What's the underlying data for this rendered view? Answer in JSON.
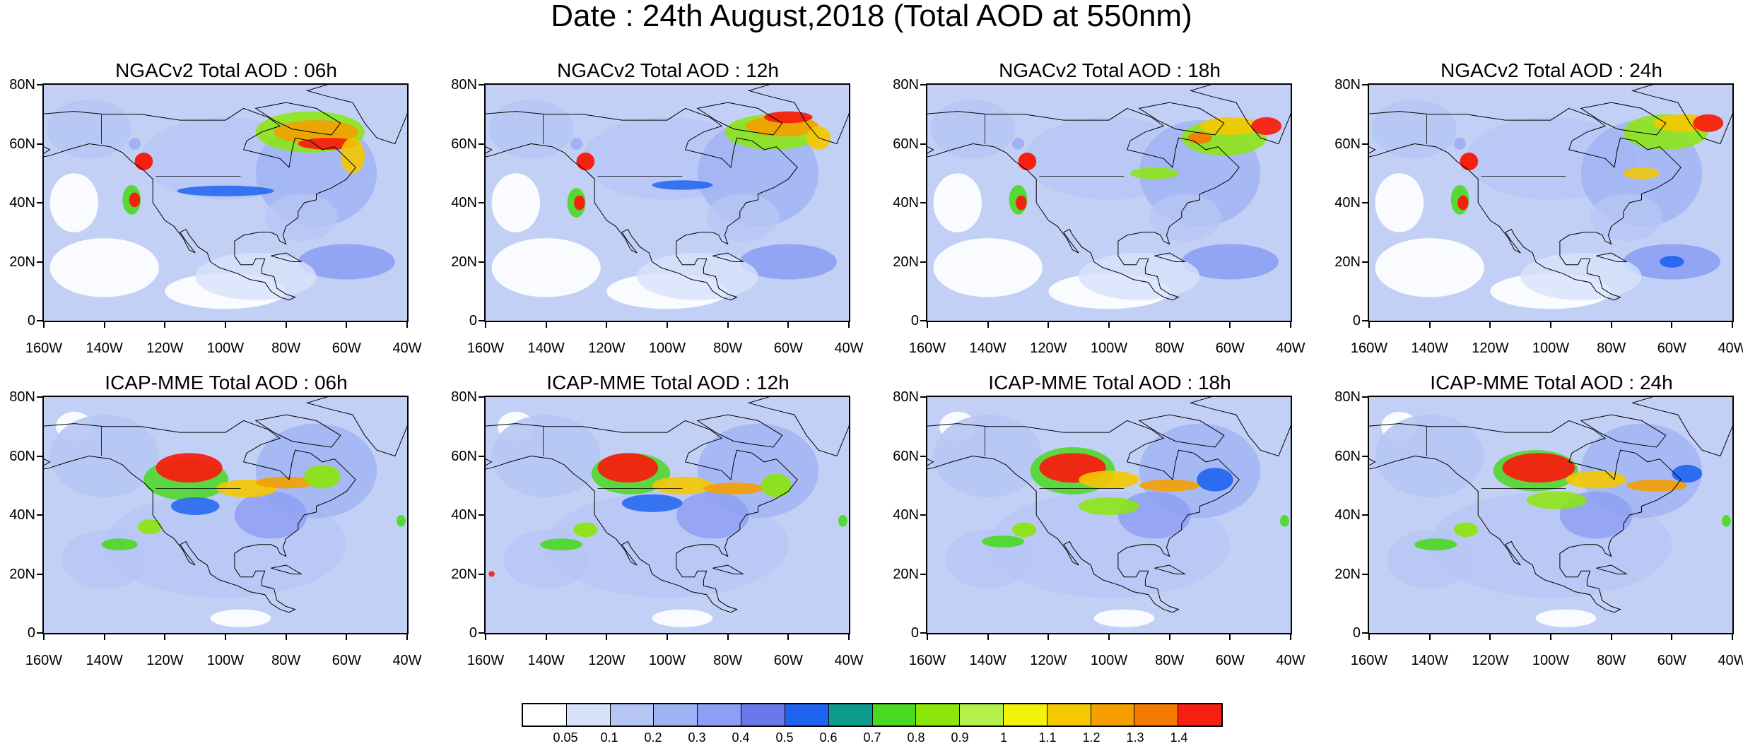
{
  "title": "Date : 24th August,2018 (Total AOD at 550nm)",
  "lat_labels": [
    "80N",
    "60N",
    "40N",
    "20N",
    "0"
  ],
  "lon_labels": [
    "160W",
    "140W",
    "120W",
    "100W",
    "80W",
    "60W",
    "40W"
  ],
  "colorbar": {
    "colors": [
      "#ffffff",
      "#d8e2fb",
      "#b6c6f4",
      "#9fb3f4",
      "#8d9ef4",
      "#6a79ea",
      "#1e64f0",
      "#0d9b8c",
      "#4ad820",
      "#8ce60a",
      "#b4f04a",
      "#f2f20a",
      "#f5c800",
      "#f5a000",
      "#f57a00",
      "#f52010"
    ],
    "labels": [
      "0.05",
      "0.1",
      "0.2",
      "0.3",
      "0.4",
      "0.5",
      "0.6",
      "0.7",
      "0.8",
      "0.9",
      "1",
      "1.1",
      "1.2",
      "1.3",
      "1.4"
    ]
  },
  "panels": [
    {
      "title": "NGACv2 Total AOD : 06h"
    },
    {
      "title": "NGACv2 Total AOD : 12h"
    },
    {
      "title": "NGACv2 Total AOD : 18h"
    },
    {
      "title": "NGACv2 Total AOD : 24h"
    },
    {
      "title": "ICAP-MME Total AOD : 06h"
    },
    {
      "title": "ICAP-MME Total AOD : 12h"
    },
    {
      "title": "ICAP-MME Total AOD : 18h"
    },
    {
      "title": "ICAP-MME Total AOD : 24h"
    }
  ]
}
